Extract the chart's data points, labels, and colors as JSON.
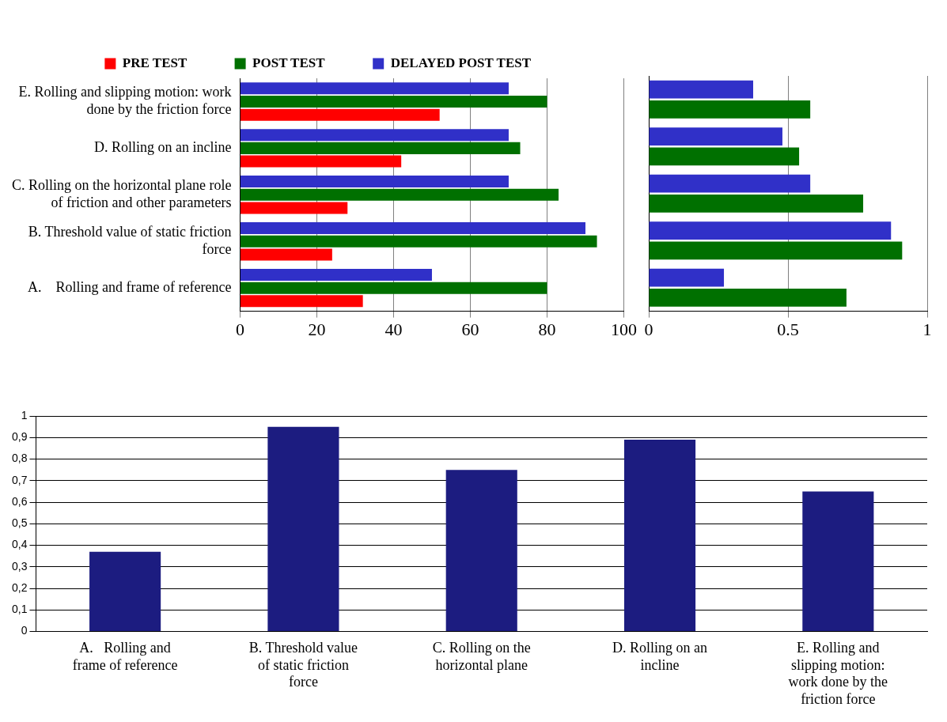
{
  "chart_data": [
    {
      "type": "bar",
      "orientation": "horizontal",
      "categories": [
        "E. Rolling and slipping motion: work done by the friction force",
        "D. Rolling on an incline",
        "C. Rolling on the horizontal plane role of friction and other parameters",
        "B. Threshold value of static friction force",
        "A.    Rolling and frame of reference"
      ],
      "series": [
        {
          "name": "PRE TEST",
          "color": "#ff0000",
          "values": [
            52,
            42,
            28,
            24,
            32
          ]
        },
        {
          "name": "POST TEST",
          "color": "#007000",
          "values": [
            80,
            73,
            83,
            93,
            80
          ]
        },
        {
          "name": "DELAYED POST TEST",
          "color": "#3030c8",
          "values": [
            70,
            70,
            70,
            90,
            50
          ]
        }
      ],
      "xlim": [
        0,
        100
      ],
      "xticks": [
        0,
        20,
        40,
        60,
        80,
        100
      ],
      "grid": "x",
      "legend": "top"
    },
    {
      "type": "bar",
      "orientation": "horizontal",
      "categories": [
        null,
        null,
        null,
        null,
        null
      ],
      "series": [
        {
          "color": "#007000",
          "values": [
            0.58,
            0.54,
            0.77,
            0.91,
            0.71
          ]
        },
        {
          "color": "#3030c8",
          "values": [
            0.375,
            0.48,
            0.58,
            0.87,
            0.27
          ]
        }
      ],
      "xlim": [
        0,
        1
      ],
      "xticks": [
        0,
        0.5,
        1
      ],
      "grid": "x",
      "tick_labels": "x"
    },
    {
      "type": "bar",
      "categories": [
        "A.   Rolling and frame of reference",
        "B. Threshold value of static friction force",
        "C. Rolling on the horizontal plane",
        "D. Rolling on an incline",
        "E. Rolling and slipping motion: work done by the friction force"
      ],
      "values": [
        0.37,
        0.95,
        0.75,
        0.89,
        0.65
      ],
      "color": "#1c1c80",
      "ylim": [
        0,
        1
      ],
      "yticks": [
        0,
        {
          "value": 0.1,
          "label": "0,1"
        },
        {
          "value": 0.2,
          "label": "0,2"
        },
        {
          "value": 0.3,
          "label": "0,3"
        },
        {
          "value": 0.4,
          "label": "0,4"
        },
        {
          "value": 0.5,
          "label": "0,5"
        },
        {
          "value": 0.6,
          "label": "0,6"
        },
        {
          "value": 0.7,
          "label": "0,7"
        },
        {
          "value": 0.8,
          "label": "0,8"
        },
        {
          "value": 0.9,
          "label": "0,9"
        },
        1
      ],
      "grid": "y"
    }
  ]
}
